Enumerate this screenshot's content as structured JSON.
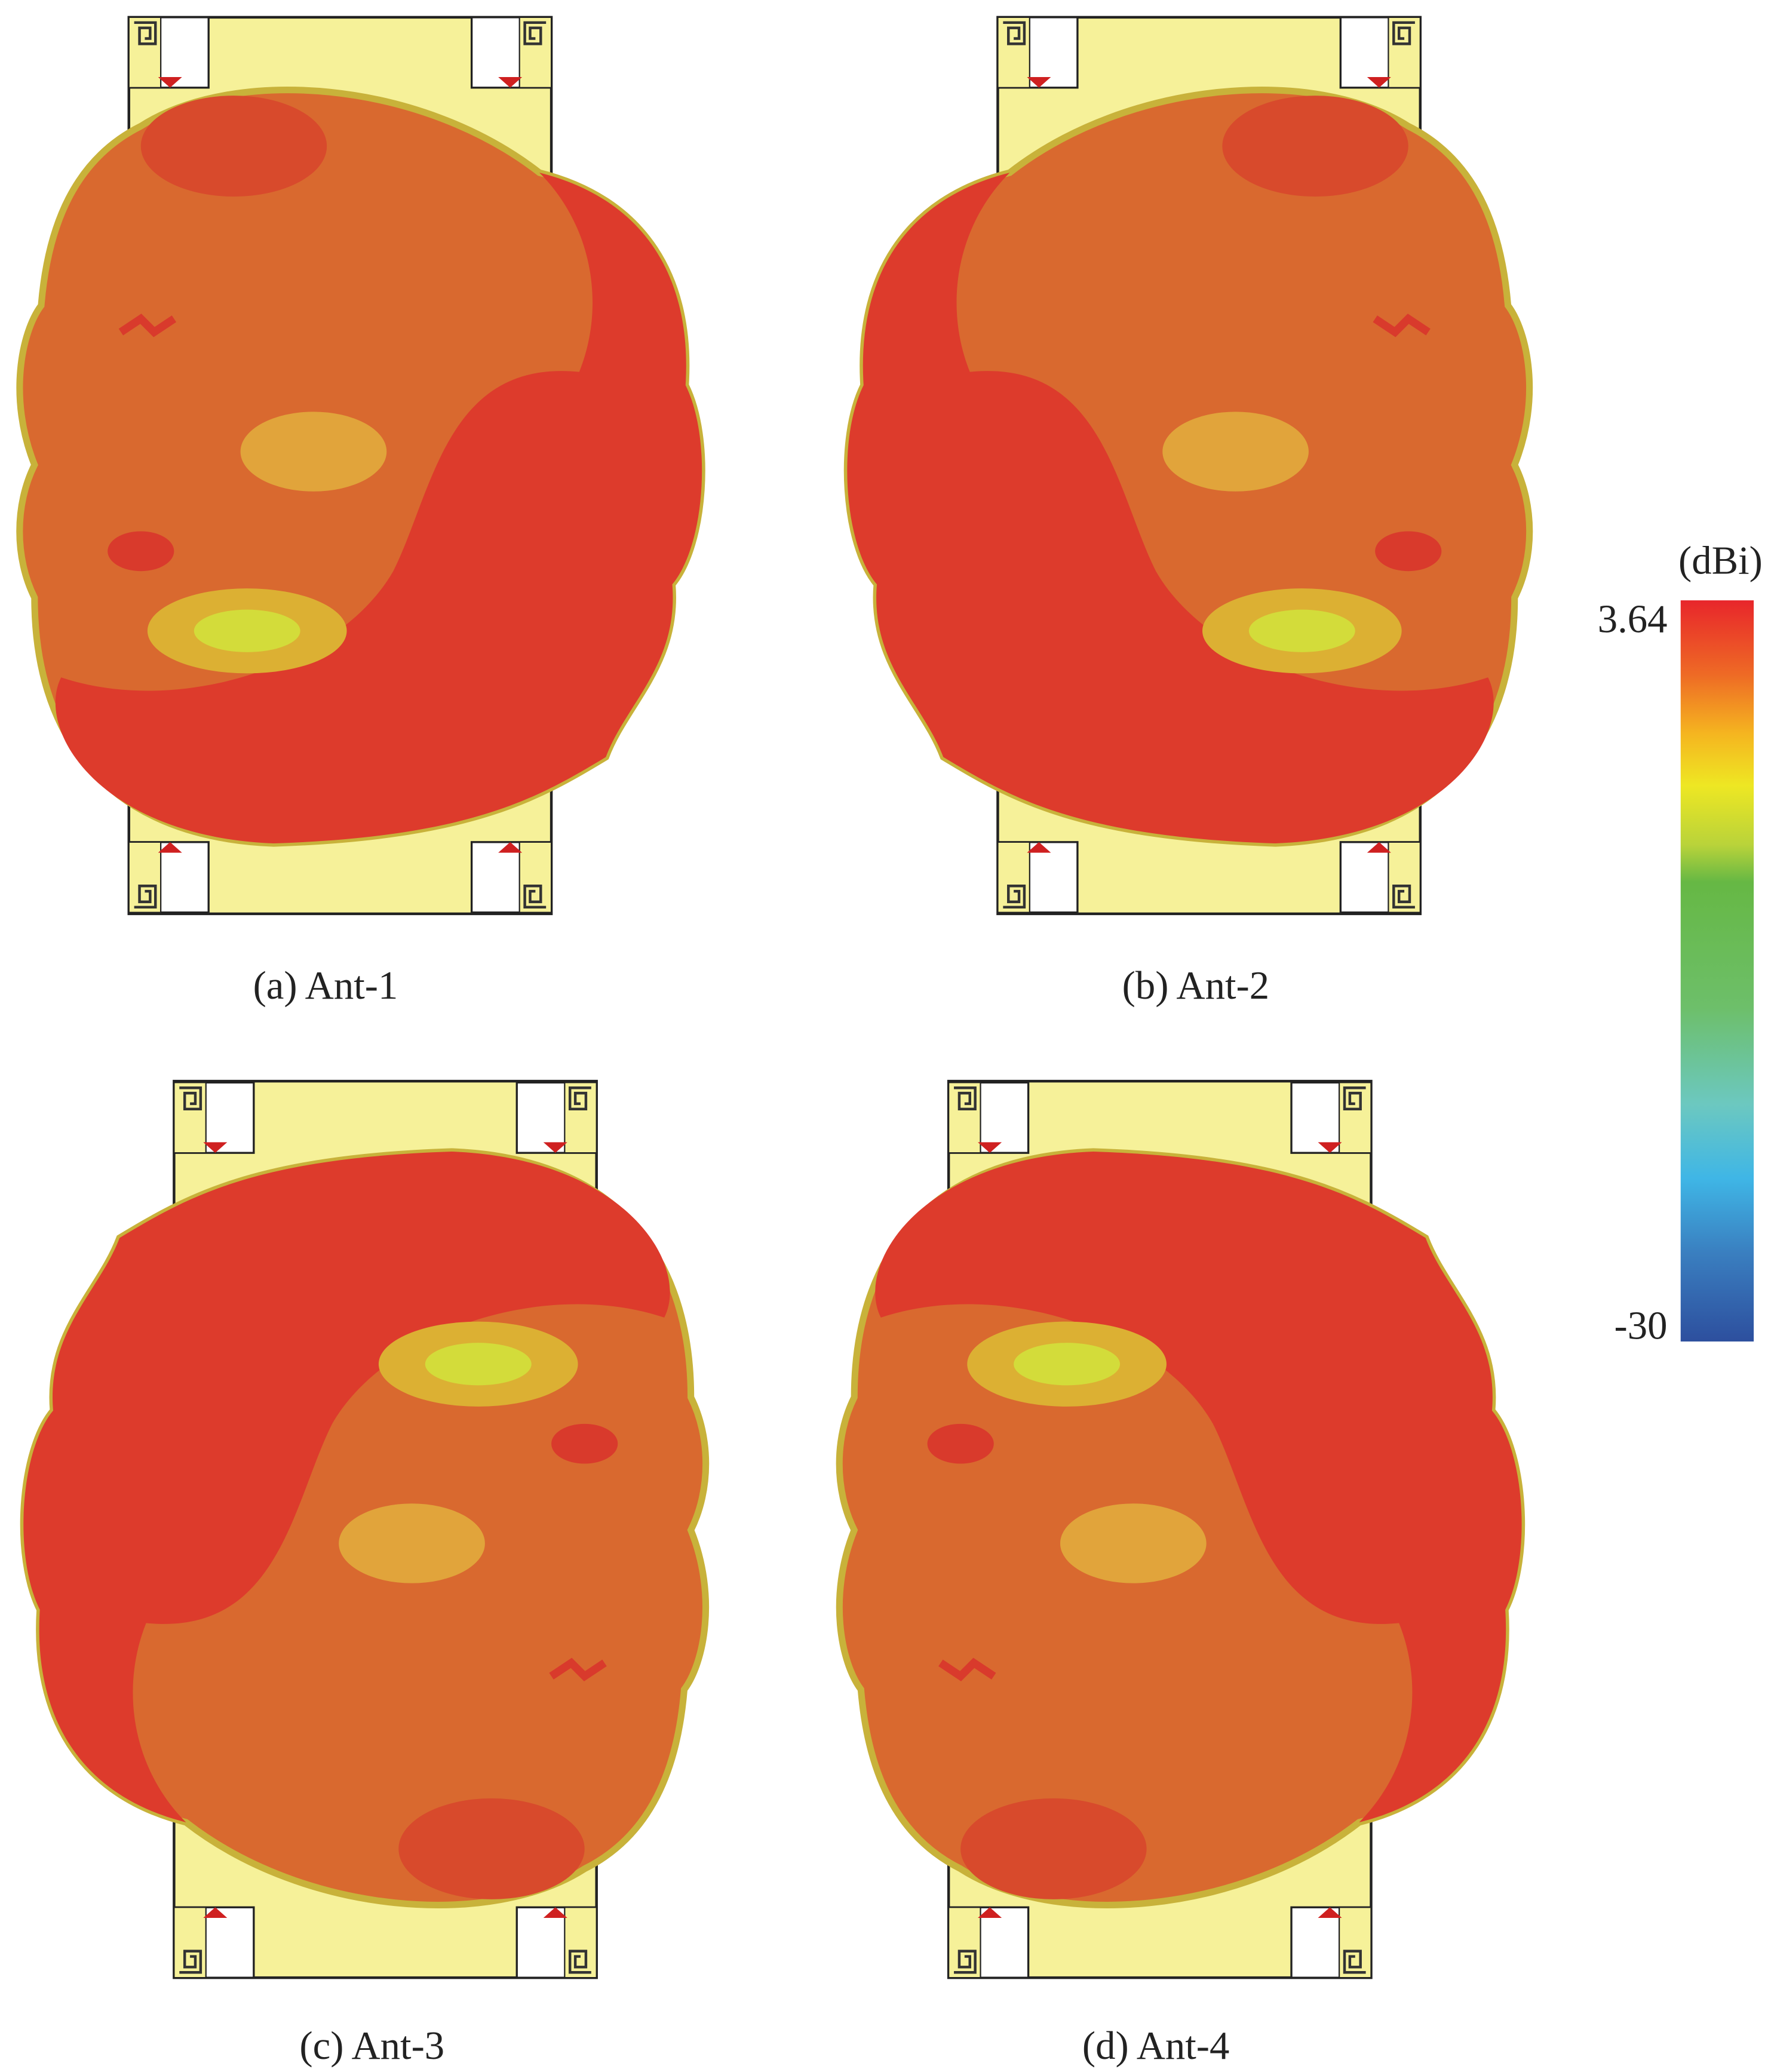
{
  "panels": [
    {
      "caption": "(a) Ant-1"
    },
    {
      "caption": "(b) Ant-2"
    },
    {
      "caption": "(c) Ant-3"
    },
    {
      "caption": "(d) Ant-4"
    }
  ],
  "colorbar": {
    "unit": "(dBi)",
    "max_label": "3.64",
    "min_label": "-30"
  }
}
